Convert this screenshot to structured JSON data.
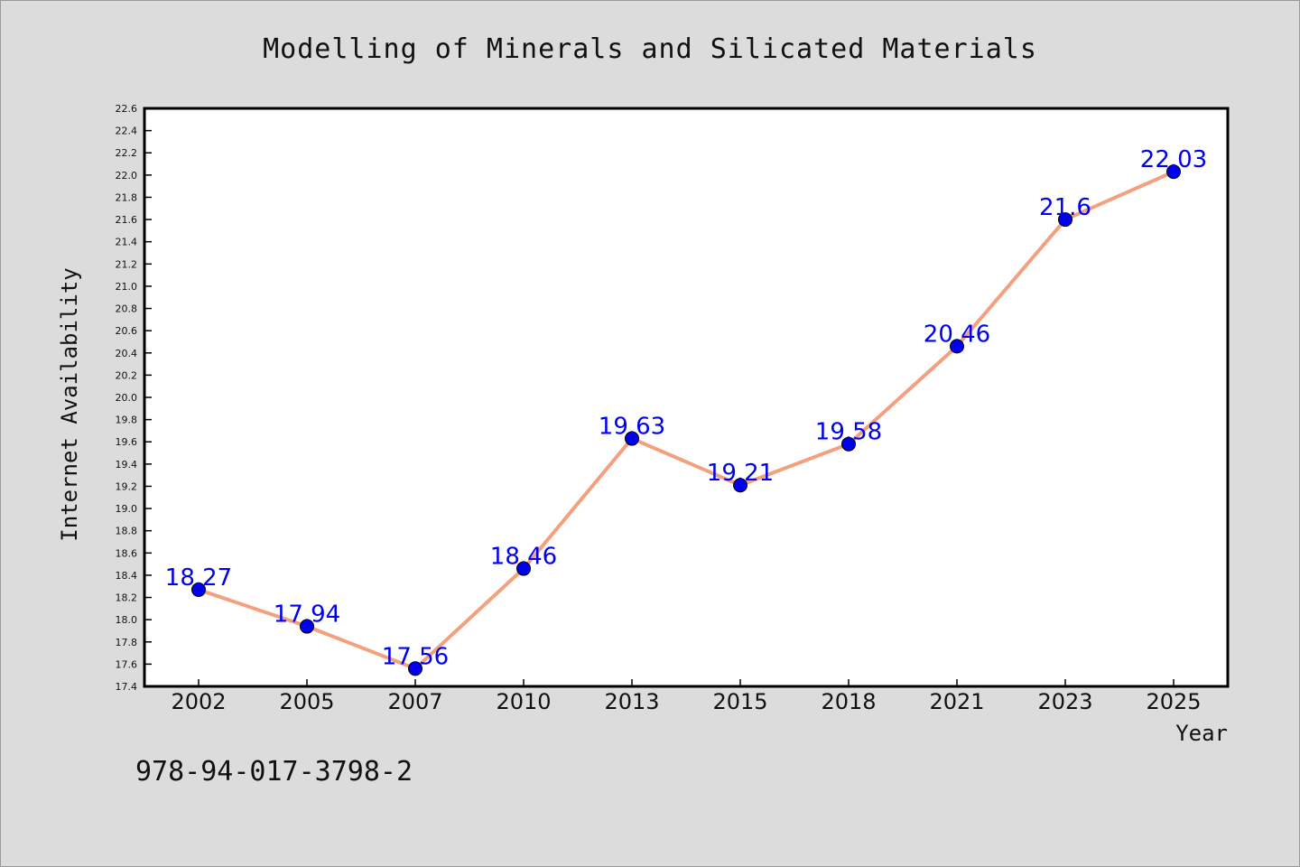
{
  "chart_data": {
    "type": "line",
    "title": "Modelling of Minerals and Silicated Materials",
    "xlabel": "Year",
    "ylabel": "Internet Availability",
    "categories": [
      "2002",
      "2005",
      "2007",
      "2010",
      "2013",
      "2015",
      "2018",
      "2021",
      "2023",
      "2025"
    ],
    "series": [
      {
        "values": [
          18.27,
          17.94,
          17.56,
          18.46,
          19.63,
          19.21,
          19.58,
          20.46,
          21.6,
          22.03
        ],
        "labels": [
          "18.27",
          "17.94",
          "17.56",
          "18.46",
          "19.63",
          "19.21",
          "19.58",
          "20.46",
          "21.6",
          "22.03"
        ]
      }
    ],
    "ylim": [
      17.4,
      22.6
    ],
    "yticks": [
      "17.4",
      "17.6",
      "17.8",
      "18.0",
      "18.2",
      "18.4",
      "18.6",
      "18.8",
      "19.0",
      "19.2",
      "19.4",
      "19.6",
      "19.8",
      "20.0",
      "20.2",
      "20.4",
      "20.6",
      "20.8",
      "21.0",
      "21.2",
      "21.4",
      "21.6",
      "21.8",
      "22.0",
      "22.2",
      "22.4",
      "22.6"
    ],
    "grid": false,
    "legend": "none",
    "colors": {
      "line": "#f4a07f",
      "marker": "#0000ee",
      "label": "#0000ee",
      "plot_bg": "#ffffff",
      "page_bg": "#dcdcdc"
    }
  },
  "caption": "978-94-017-3798-2"
}
